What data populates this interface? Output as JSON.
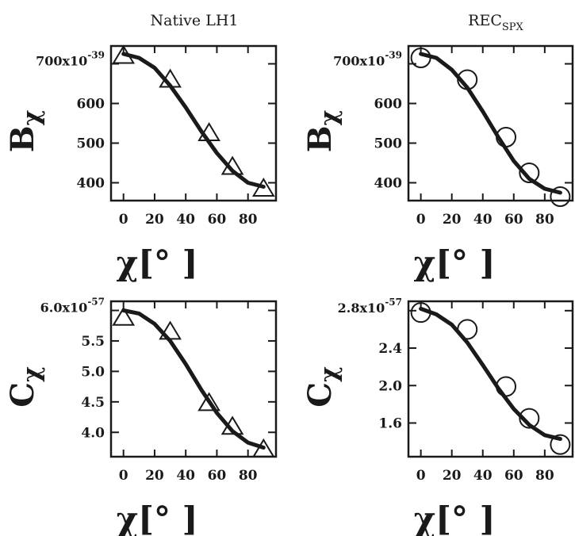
{
  "column_titles": {
    "left": "Native LH1",
    "right_main": "REC",
    "right_sub": "SPX"
  },
  "chart_data": [
    {
      "type": "scatter",
      "panel": "top-left",
      "ylabel": "B",
      "ylabel_sub": "χ",
      "xlabel": "χ[°  ]",
      "multiplier": "x10",
      "multiplier_exp": "-39",
      "first_tick_label": "700",
      "xlim": [
        -8,
        98
      ],
      "ylim": [
        355,
        745
      ],
      "xticks": [
        0,
        20,
        40,
        60,
        80
      ],
      "yticks": [
        400,
        500,
        600,
        700
      ],
      "yticks_labeled": [
        400,
        500,
        600
      ],
      "marker": "triangle",
      "points": {
        "x": [
          0,
          30,
          55,
          70,
          90
        ],
        "y": [
          720,
          660,
          525,
          440,
          385
        ]
      },
      "curve": {
        "x": [
          0,
          10,
          20,
          30,
          40,
          50,
          60,
          70,
          80,
          90
        ],
        "y": [
          725,
          715,
          690,
          645,
          590,
          530,
          475,
          430,
          400,
          390
        ]
      }
    },
    {
      "type": "scatter",
      "panel": "top-right",
      "ylabel": "B",
      "ylabel_sub": "χ",
      "xlabel": "χ[°  ]",
      "multiplier": "x10",
      "multiplier_exp": "-39",
      "first_tick_label": "700",
      "xlim": [
        -8,
        98
      ],
      "ylim": [
        355,
        745
      ],
      "xticks": [
        0,
        20,
        40,
        60,
        80
      ],
      "yticks": [
        400,
        500,
        600,
        700
      ],
      "yticks_labeled": [
        400,
        500,
        600
      ],
      "marker": "circle",
      "points": {
        "x": [
          0,
          30,
          55,
          70,
          90
        ],
        "y": [
          715,
          660,
          515,
          425,
          365
        ]
      },
      "curve": {
        "x": [
          0,
          10,
          20,
          30,
          40,
          50,
          60,
          70,
          80,
          90
        ],
        "y": [
          725,
          715,
          685,
          640,
          580,
          515,
          455,
          410,
          385,
          375
        ]
      }
    },
    {
      "type": "scatter",
      "panel": "bottom-left",
      "ylabel": "C",
      "ylabel_sub": "χ",
      "xlabel": "χ[°  ]",
      "multiplier": "x10",
      "multiplier_exp": "-57",
      "first_tick_label": "6.0",
      "xlim": [
        -8,
        98
      ],
      "ylim": [
        3.6,
        6.15
      ],
      "xticks": [
        0,
        20,
        40,
        60,
        80
      ],
      "yticks": [
        4.0,
        4.5,
        5.0,
        5.5,
        6.0
      ],
      "yticks_labeled": [
        4.0,
        4.5,
        5.0,
        5.5
      ],
      "marker": "triangle",
      "points": {
        "x": [
          0,
          30,
          55,
          70,
          90
        ],
        "y": [
          5.88,
          5.65,
          4.48,
          4.09,
          3.72
        ]
      },
      "curve": {
        "x": [
          0,
          10,
          20,
          30,
          40,
          50,
          60,
          70,
          80,
          90
        ],
        "y": [
          6.0,
          5.95,
          5.78,
          5.5,
          5.12,
          4.7,
          4.32,
          4.02,
          3.83,
          3.75
        ]
      }
    },
    {
      "type": "scatter",
      "panel": "bottom-right",
      "ylabel": "C",
      "ylabel_sub": "χ",
      "xlabel": "χ[°  ]",
      "multiplier": "x10",
      "multiplier_exp": "-57",
      "first_tick_label": "2.8",
      "xlim": [
        -8,
        98
      ],
      "ylim": [
        1.24,
        2.9
      ],
      "xticks": [
        0,
        20,
        40,
        60,
        80
      ],
      "yticks": [
        1.6,
        2.0,
        2.4,
        2.8
      ],
      "yticks_labeled": [
        1.6,
        2.0,
        2.4
      ],
      "marker": "circle",
      "points": {
        "x": [
          0,
          30,
          55,
          70,
          90
        ],
        "y": [
          2.78,
          2.6,
          1.99,
          1.65,
          1.37
        ]
      },
      "curve": {
        "x": [
          0,
          10,
          20,
          30,
          40,
          50,
          60,
          70,
          80,
          90
        ],
        "y": [
          2.82,
          2.76,
          2.65,
          2.46,
          2.22,
          1.97,
          1.75,
          1.58,
          1.47,
          1.43
        ]
      }
    }
  ]
}
